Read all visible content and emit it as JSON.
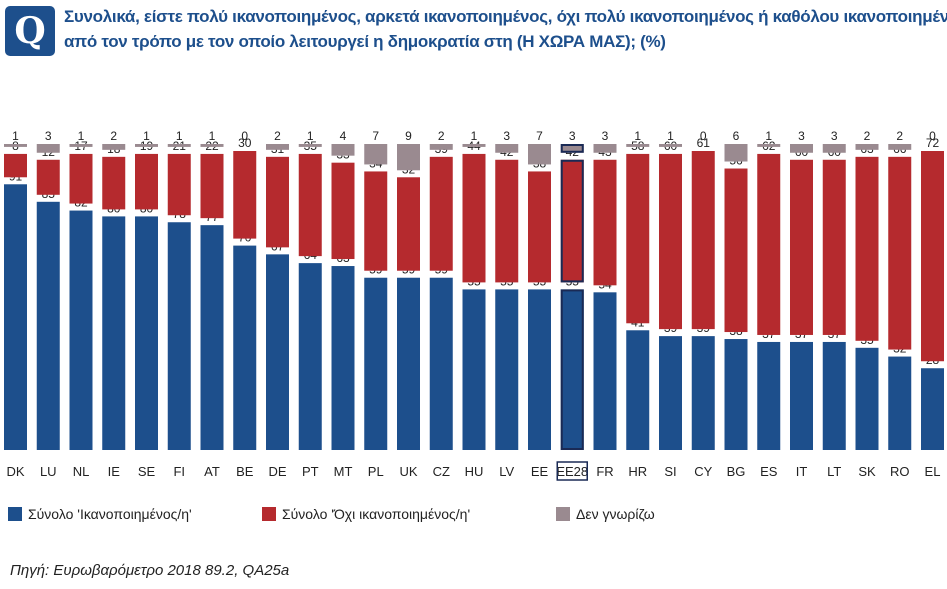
{
  "badge": "Q",
  "title": {
    "line1": "Συνολικά, είστε πολύ ικανοποιημένος, αρκετά ικανοποιημένος, όχι πολύ ικανοποιημένος ή καθόλου ικανοποιημένος",
    "line2": "από τον τρόπο με τον οποίο λειτουργεί η δημοκρατία στη (Η ΧΩΡΑ ΜΑΣ); (%)"
  },
  "legend": {
    "satisfied": "Σύνολο 'Ικανοποιημένος/η'",
    "not_satisfied": "Σύνολο 'Όχι ικανοποιημένος/η'",
    "dont_know": "Δεν γνωρίζω"
  },
  "colors": {
    "satisfied": "#1d4f8c",
    "not_satisfied": "#b52a2e",
    "dont_know": "#9a8a90",
    "highlight_outline": "#1a2a55"
  },
  "source": "Πηγή: Ευρωβαρόμετρο 2018 89.2, QA25a",
  "chart_data": {
    "type": "bar",
    "stacked": true,
    "title": "Συνολικά, είστε πολύ ικανοποιημένος, αρκετά ικανοποιημένος, όχι πολύ ικανοποιημένος ή καθόλου ικανοποιημένος από τον τρόπο με τον οποίο λειτουργεί η δημοκρατία στη (Η ΧΩΡΑ ΜΑΣ); (%)",
    "xlabel": "",
    "ylabel": "",
    "ylim": [
      0,
      100
    ],
    "highlight": "EE28",
    "categories": [
      "DK",
      "LU",
      "NL",
      "IE",
      "SE",
      "FI",
      "AT",
      "BE",
      "DE",
      "PT",
      "MT",
      "PL",
      "UK",
      "CZ",
      "HU",
      "LV",
      "EE",
      "EE28",
      "FR",
      "HR",
      "SI",
      "CY",
      "BG",
      "ES",
      "IT",
      "LT",
      "SK",
      "RO",
      "EL"
    ],
    "series": [
      {
        "name": "Σύνολο 'Ικανοποιημένος/η'",
        "values": [
          91,
          85,
          82,
          80,
          80,
          78,
          77,
          70,
          67,
          64,
          63,
          59,
          59,
          59,
          55,
          55,
          55,
          55,
          54,
          41,
          39,
          39,
          38,
          37,
          37,
          37,
          35,
          32,
          28
        ]
      },
      {
        "name": "Σύνολο 'Όχι ικανοποιημένος/η'",
        "values": [
          8,
          12,
          17,
          18,
          19,
          21,
          22,
          30,
          31,
          35,
          33,
          34,
          32,
          39,
          44,
          42,
          38,
          42,
          43,
          58,
          60,
          61,
          56,
          62,
          60,
          60,
          63,
          66,
          72
        ]
      },
      {
        "name": "Δεν γνωρίζω",
        "values": [
          1,
          3,
          1,
          2,
          1,
          1,
          1,
          0,
          2,
          1,
          4,
          7,
          9,
          2,
          1,
          3,
          7,
          3,
          3,
          1,
          1,
          0,
          6,
          1,
          3,
          3,
          2,
          2,
          0
        ]
      }
    ]
  }
}
